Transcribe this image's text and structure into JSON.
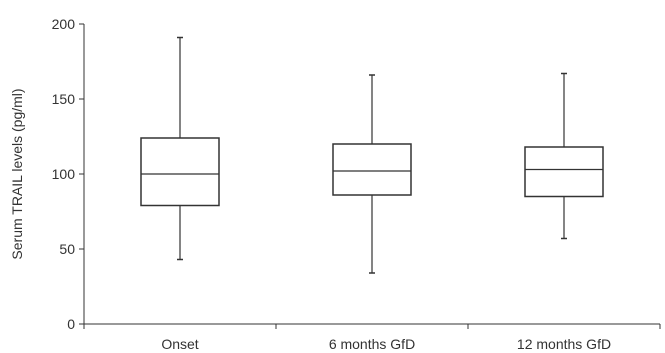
{
  "chart_data": {
    "type": "box",
    "title": "",
    "xlabel": "",
    "ylabel": "Serum TRAIL levels (pg/ml)",
    "ylim": [
      0,
      200
    ],
    "yticks": [
      0,
      50,
      100,
      150,
      200
    ],
    "grid": false,
    "categories": [
      "Onset",
      "6 months GfD",
      "12 months GfD"
    ],
    "boxes": [
      {
        "category": "Onset",
        "min": 43,
        "q1": 79,
        "median": 100,
        "q3": 124,
        "max": 191
      },
      {
        "category": "6 months GfD",
        "min": 34,
        "q1": 86,
        "median": 102,
        "q3": 120,
        "max": 166
      },
      {
        "category": "12 months GfD",
        "min": 57,
        "q1": 85,
        "median": 103,
        "q3": 118,
        "max": 167
      }
    ],
    "colors": {
      "stroke": "#333333",
      "fill": "#ffffff"
    }
  }
}
